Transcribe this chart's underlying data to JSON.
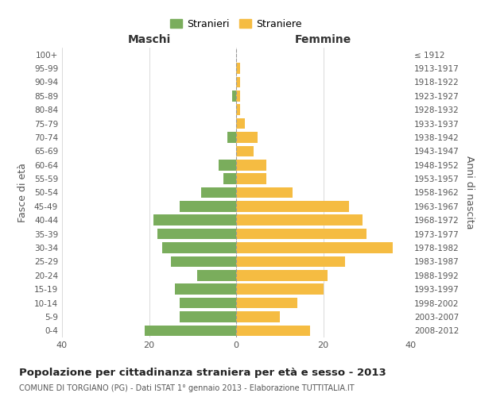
{
  "age_groups": [
    "0-4",
    "5-9",
    "10-14",
    "15-19",
    "20-24",
    "25-29",
    "30-34",
    "35-39",
    "40-44",
    "45-49",
    "50-54",
    "55-59",
    "60-64",
    "65-69",
    "70-74",
    "75-79",
    "80-84",
    "85-89",
    "90-94",
    "95-99",
    "100+"
  ],
  "birth_years": [
    "2008-2012",
    "2003-2007",
    "1998-2002",
    "1993-1997",
    "1988-1992",
    "1983-1987",
    "1978-1982",
    "1973-1977",
    "1968-1972",
    "1963-1967",
    "1958-1962",
    "1953-1957",
    "1948-1952",
    "1943-1947",
    "1938-1942",
    "1933-1937",
    "1928-1932",
    "1923-1927",
    "1918-1922",
    "1913-1917",
    "≤ 1912"
  ],
  "maschi": [
    21,
    13,
    13,
    14,
    9,
    15,
    17,
    18,
    19,
    13,
    8,
    3,
    4,
    0,
    2,
    0,
    0,
    1,
    0,
    0,
    0
  ],
  "femmine": [
    17,
    10,
    14,
    20,
    21,
    25,
    36,
    30,
    29,
    26,
    13,
    7,
    7,
    4,
    5,
    2,
    1,
    1,
    1,
    1,
    0
  ],
  "male_color": "#7aad5c",
  "female_color": "#f5bc42",
  "background_color": "#ffffff",
  "grid_color": "#cccccc",
  "title": "Popolazione per cittadinanza straniera per età e sesso - 2013",
  "subtitle": "COMUNE DI TORGIANO (PG) - Dati ISTAT 1° gennaio 2013 - Elaborazione TUTTITALIA.IT",
  "xlabel_left": "Maschi",
  "xlabel_right": "Femmine",
  "ylabel_left": "Fasce di età",
  "ylabel_right": "Anni di nascita",
  "xlim": 40,
  "legend_stranieri": "Stranieri",
  "legend_straniere": "Straniere"
}
